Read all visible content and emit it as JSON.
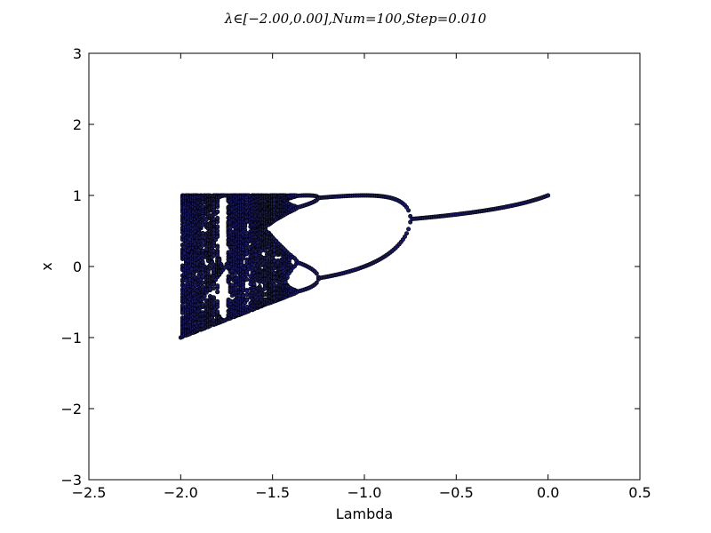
{
  "chart_data": {
    "type": "scatter",
    "title": "λ∈[−2.00,0.00],Num=100,Step=0.010",
    "xlabel": "Lambda",
    "ylabel": "x",
    "xlim": [
      -2.5,
      0.5
    ],
    "ylim": [
      -3,
      3
    ],
    "xticks": [
      -2.5,
      -2.0,
      -1.5,
      -1.0,
      -0.5,
      0.0,
      0.5
    ],
    "xtick_labels": [
      "−2.5",
      "−2.0",
      "−1.5",
      "−1.0",
      "−0.5",
      "0.0",
      "0.5"
    ],
    "yticks": [
      -3,
      -2,
      -1,
      0,
      1,
      2,
      3
    ],
    "ytick_labels": [
      "−3",
      "−2",
      "−1",
      "0",
      "1",
      "2",
      "3"
    ],
    "grid": false,
    "lambda_range": [
      -2.0,
      0.0
    ],
    "num": 100,
    "step": 0.01,
    "marker_fill": "#1a1a60",
    "marker_edge": "#000000"
  }
}
